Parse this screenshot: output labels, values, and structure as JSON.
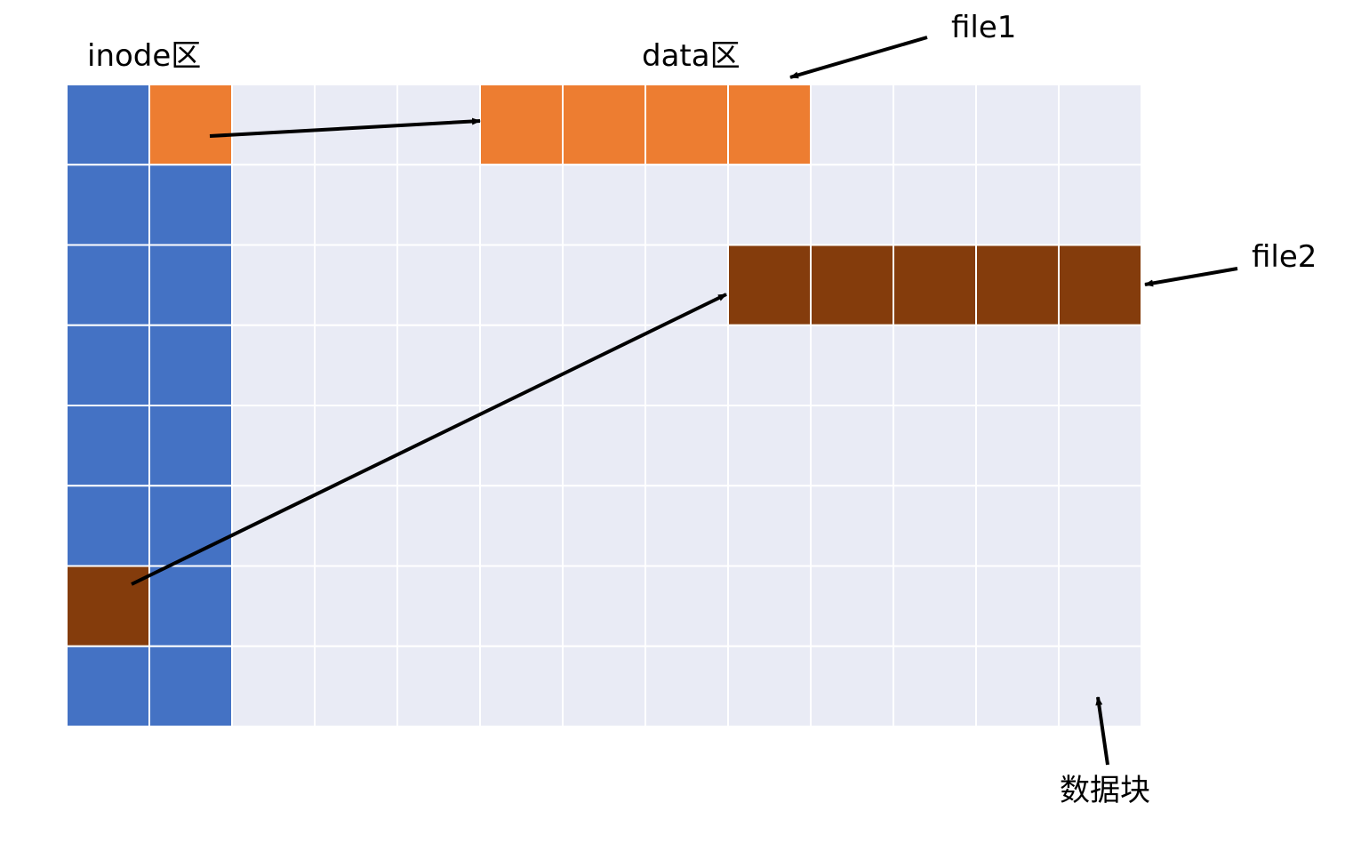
{
  "labels": {
    "inode_area": "inode区",
    "data_area": "data区",
    "file1": "file1",
    "file2": "file2",
    "data_block": "数据块"
  },
  "grid": {
    "rows": 8,
    "cols": 13,
    "inode_cols": 2
  },
  "colors": {
    "inode_block": "#4472C4",
    "free_block": "#E9EBF5",
    "file1_block": "#ED7D31",
    "file2_block": "#843C0C",
    "grid_line": "#FFFFFF",
    "arrow": "#000000"
  },
  "file1": {
    "inode": {
      "row": 0,
      "col": 1
    },
    "blocks": [
      {
        "row": 0,
        "col": 5
      },
      {
        "row": 0,
        "col": 6
      },
      {
        "row": 0,
        "col": 7
      },
      {
        "row": 0,
        "col": 8
      }
    ]
  },
  "file2": {
    "inode": {
      "row": 6,
      "col": 0
    },
    "blocks": [
      {
        "row": 2,
        "col": 8
      },
      {
        "row": 2,
        "col": 9
      },
      {
        "row": 2,
        "col": 10
      },
      {
        "row": 2,
        "col": 11
      },
      {
        "row": 2,
        "col": 12
      }
    ]
  }
}
